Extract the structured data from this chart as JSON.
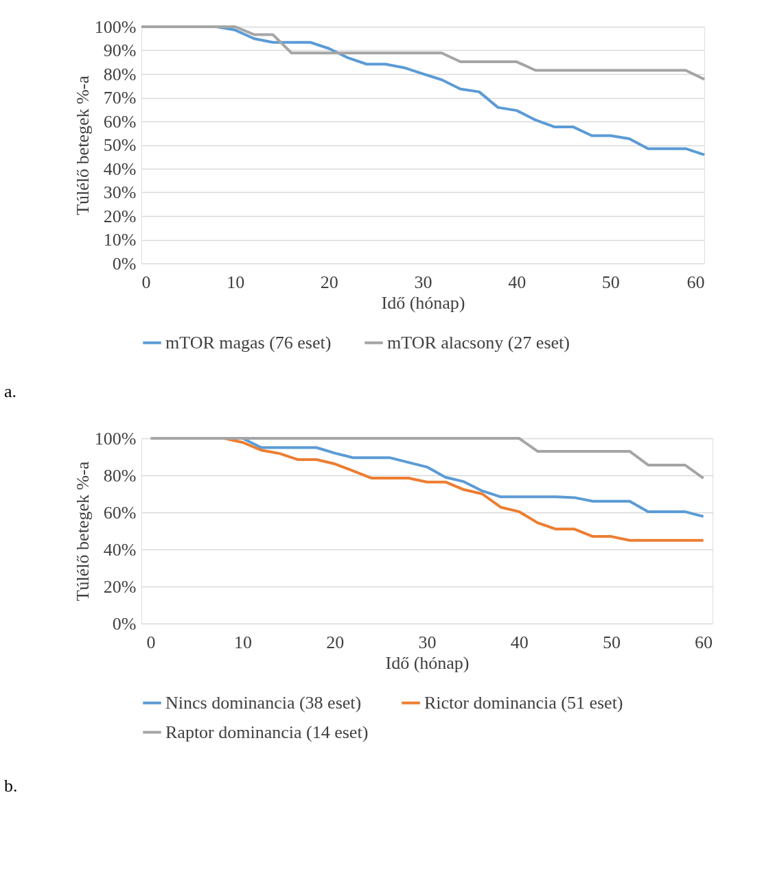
{
  "chart_data": [
    {
      "type": "line",
      "xlabel": "Idő (hónap)",
      "ylabel": "Túlélő betegek %-a",
      "annotations": [
        "a."
      ],
      "x": [
        0,
        2,
        4,
        6,
        8,
        10,
        12,
        14,
        16,
        18,
        20,
        22,
        24,
        26,
        28,
        30,
        32,
        34,
        36,
        38,
        40,
        42,
        44,
        46,
        48,
        50,
        52,
        54,
        56,
        58,
        60
      ],
      "xlim": [
        0,
        60
      ],
      "xticks": [
        0,
        10,
        20,
        30,
        40,
        50,
        60
      ],
      "ylim": [
        0,
        100
      ],
      "yticks": [
        {
          "value": 0,
          "label": "0%"
        },
        {
          "value": 10,
          "label": "10%"
        },
        {
          "value": 20,
          "label": "20%"
        },
        {
          "value": 30,
          "label": "30%"
        },
        {
          "value": 40,
          "label": "40%"
        },
        {
          "value": 50,
          "label": "50%"
        },
        {
          "value": 60,
          "label": "60%"
        },
        {
          "value": 70,
          "label": "70%"
        },
        {
          "value": 80,
          "label": "80%"
        },
        {
          "value": 90,
          "label": "90%"
        },
        {
          "value": 100,
          "label": "100%"
        }
      ],
      "grid": "y",
      "legend": "bottom",
      "line_style": "solid",
      "marker": "none",
      "series": [
        {
          "name": "mTOR magas (76 eset)",
          "color": "#5b9bd5",
          "values": [
            null,
            null,
            null,
            100,
            100,
            98.6,
            95,
            93.4,
            93.4,
            93.4,
            90.8,
            86.9,
            84.2,
            84.2,
            82.7,
            80.1,
            77.6,
            73.7,
            72.5,
            65.9,
            64.6,
            60.6,
            57.7,
            57.7,
            54,
            54,
            52.7,
            48.5,
            48.5,
            48.5,
            45.9
          ]
        },
        {
          "name": "mTOR alacsony (27 eset)",
          "color": "#a5a5a5",
          "values": [
            100,
            100,
            100,
            100,
            100,
            100,
            96.7,
            96.7,
            88.9,
            88.9,
            88.9,
            88.9,
            88.9,
            88.9,
            88.9,
            88.9,
            88.9,
            85.2,
            85.2,
            85.2,
            85.2,
            81.6,
            81.6,
            81.6,
            81.6,
            81.6,
            81.6,
            81.6,
            81.6,
            81.6,
            77.8
          ]
        }
      ]
    },
    {
      "type": "line",
      "xlabel": "Idő (hónap)",
      "ylabel": "Túlélő betegek %-a",
      "annotations": [
        "b."
      ],
      "x": [
        0,
        2,
        4,
        6,
        8,
        10,
        12,
        14,
        16,
        18,
        20,
        22,
        24,
        26,
        28,
        30,
        32,
        34,
        36,
        38,
        40,
        42,
        44,
        46,
        48,
        50,
        52,
        54,
        56,
        58,
        60
      ],
      "xlim": [
        -1,
        61
      ],
      "xticks": [
        0,
        10,
        20,
        30,
        40,
        50,
        60
      ],
      "ylim": [
        0,
        100
      ],
      "yticks": [
        {
          "value": 0,
          "label": "0%"
        },
        {
          "value": 20,
          "label": "20%"
        },
        {
          "value": 40,
          "label": "40%"
        },
        {
          "value": 60,
          "label": "60%"
        },
        {
          "value": 80,
          "label": "80%"
        },
        {
          "value": 100,
          "label": "100%"
        }
      ],
      "grid": "y",
      "legend": "bottom",
      "line_style": "solid",
      "marker": "none",
      "series": [
        {
          "name": "Nincs dominancia (38 eset)",
          "color": "#5b9bd5",
          "values": [
            null,
            null,
            null,
            null,
            100,
            100,
            95,
            95,
            95,
            95,
            92,
            89.5,
            89.5,
            89.5,
            87,
            84.5,
            79,
            76.6,
            71.6,
            68.4,
            68.4,
            68.4,
            68.4,
            68,
            66,
            66,
            66,
            60.4,
            60.4,
            60.4,
            57.8
          ]
        },
        {
          "name": "Rictor dominancia (51 eset)",
          "color": "#ed7d31",
          "values": [
            null,
            null,
            null,
            null,
            100,
            97.8,
            93.6,
            91.8,
            88.5,
            88.5,
            86.2,
            82.4,
            78.5,
            78.5,
            78.5,
            76.4,
            76.4,
            72.3,
            70,
            62.8,
            60.4,
            54.4,
            51,
            51,
            47,
            47,
            44.9,
            44.9,
            44.9,
            44.9,
            44.9
          ]
        },
        {
          "name": "Raptor dominancia (14 eset)",
          "color": "#a5a5a5",
          "values": [
            100,
            100,
            100,
            100,
            100,
            100,
            100,
            100,
            100,
            100,
            100,
            100,
            100,
            100,
            100,
            100,
            100,
            100,
            100,
            100,
            100,
            93,
            93,
            93,
            93,
            93,
            93,
            85.6,
            85.6,
            85.6,
            78.5
          ]
        }
      ]
    }
  ]
}
